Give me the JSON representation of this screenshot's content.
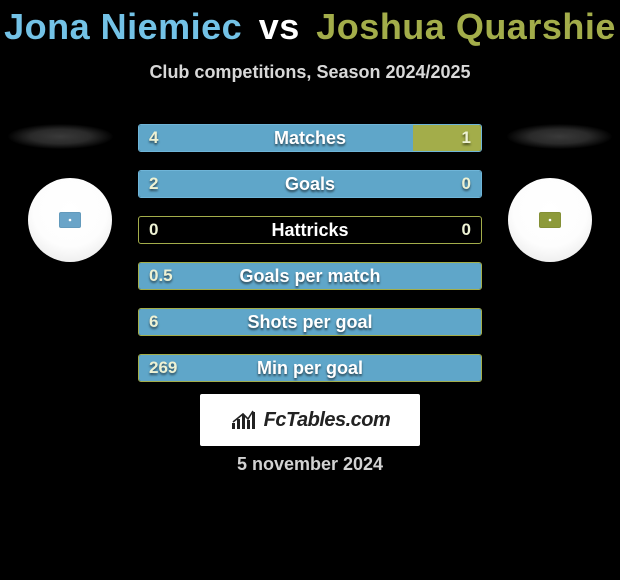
{
  "colors": {
    "player1": "#73c2e6",
    "player2": "#a3ad4a",
    "bar_border_p1": "#6fb5d8",
    "bar_border_p2": "#a3ad4a",
    "bar_fill_p1": "#5fa6c9",
    "bar_fill_p2": "#a3ad4a",
    "background": "#000000"
  },
  "header": {
    "player1": "Jona Niemiec",
    "vs": "vs",
    "player2": "Joshua Quarshie",
    "subtitle": "Club competitions, Season 2024/2025"
  },
  "bars": [
    {
      "label": "Matches",
      "left_val": "4",
      "right_val": "1",
      "left_pct": 80,
      "right_pct": 20,
      "border_side": "p1"
    },
    {
      "label": "Goals",
      "left_val": "2",
      "right_val": "0",
      "left_pct": 100,
      "right_pct": 0,
      "border_side": "p1"
    },
    {
      "label": "Hattricks",
      "left_val": "0",
      "right_val": "0",
      "left_pct": 0,
      "right_pct": 0,
      "border_side": "p2"
    },
    {
      "label": "Goals per match",
      "left_val": "0.5",
      "right_val": "",
      "left_pct": 100,
      "right_pct": 0,
      "border_side": "p2"
    },
    {
      "label": "Shots per goal",
      "left_val": "6",
      "right_val": "",
      "left_pct": 100,
      "right_pct": 0,
      "border_side": "p2"
    },
    {
      "label": "Min per goal",
      "left_val": "269",
      "right_val": "",
      "left_pct": 100,
      "right_pct": 0,
      "border_side": "p2"
    }
  ],
  "logo": {
    "text": "FcTables.com"
  },
  "date": "5 november 2024"
}
